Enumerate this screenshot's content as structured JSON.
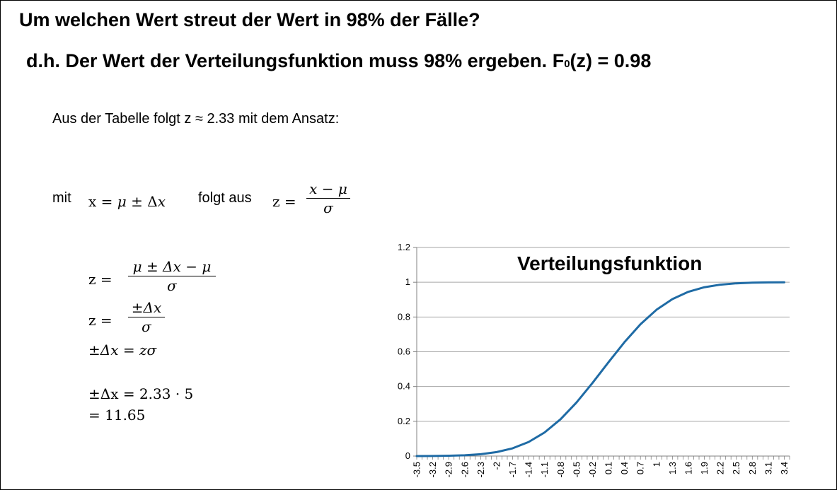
{
  "title_line1": "Um welchen Wert streut der Wert in 98% der Fälle?",
  "title_line2": {
    "main": "d.h.  Der Wert der Verteilungsfunktion muss 98% ergeben.  ",
    "f_letter": "F",
    "f_sub": "0",
    "f_tail": "(z) = 0.98"
  },
  "tabelle_text": "Aus der Tabelle folgt z ≈ 2.33 mit dem Ansatz:",
  "mit_line": {
    "mit": "mit",
    "x_expr_lead": "x = ",
    "x_expr_mu": "μ",
    "x_expr_pm": " ± Δ",
    "x_expr_x": "x",
    "folgt_aus": "folgt aus",
    "z_lhs": "z  = ",
    "frac_num": "x − μ",
    "frac_den": "σ"
  },
  "equations": {
    "eq1_lhs": "z  = ",
    "eq1_num": "μ ± Δx − μ",
    "eq1_den": "σ",
    "eq2_lhs": "z  = ",
    "eq2_num": "±Δx",
    "eq2_den": "σ",
    "eq3": "±Δx = zσ",
    "eq4": "±Δx = 2.33 · 5",
    "eq5": "= 11.65"
  },
  "chart_data": {
    "type": "line",
    "title": "Verteilungsfunktion",
    "xlabel": "",
    "ylabel": "",
    "ylim": [
      0,
      1.2
    ],
    "yticks": [
      "0",
      "0.2",
      "0.4",
      "0.6",
      "0.8",
      "1",
      "1.2"
    ],
    "xlim": [
      -3.5,
      3.5
    ],
    "xticks": [
      "-3.5",
      "-3.2",
      "-2.9",
      "-2.6",
      "-2.3",
      "-2",
      "-1.7",
      "-1.4",
      "-1.1",
      "-0.8",
      "-0.5",
      "-0.2",
      "0.1",
      "0.4",
      "0.7",
      "1",
      "1.3",
      "1.6",
      "1.9",
      "2.2",
      "2.5",
      "2.8",
      "3.1",
      "3.4"
    ],
    "grid": "horizontal",
    "legend": "none",
    "series": [
      {
        "x": [
          -3.5,
          -3.2,
          -2.9,
          -2.6,
          -2.3,
          -2.0,
          -1.7,
          -1.4,
          -1.1,
          -0.8,
          -0.5,
          -0.2,
          0.1,
          0.4,
          0.7,
          1.0,
          1.3,
          1.6,
          1.9,
          2.2,
          2.5,
          2.8,
          3.1,
          3.4
        ],
        "values": [
          0.0002,
          0.0007,
          0.0019,
          0.0047,
          0.0107,
          0.0228,
          0.0446,
          0.0808,
          0.1357,
          0.2119,
          0.3085,
          0.4207,
          0.5398,
          0.6554,
          0.758,
          0.8413,
          0.9032,
          0.9452,
          0.9713,
          0.9861,
          0.9938,
          0.9974,
          0.999,
          0.9997
        ]
      }
    ],
    "line_color": "#1F6BA5"
  }
}
